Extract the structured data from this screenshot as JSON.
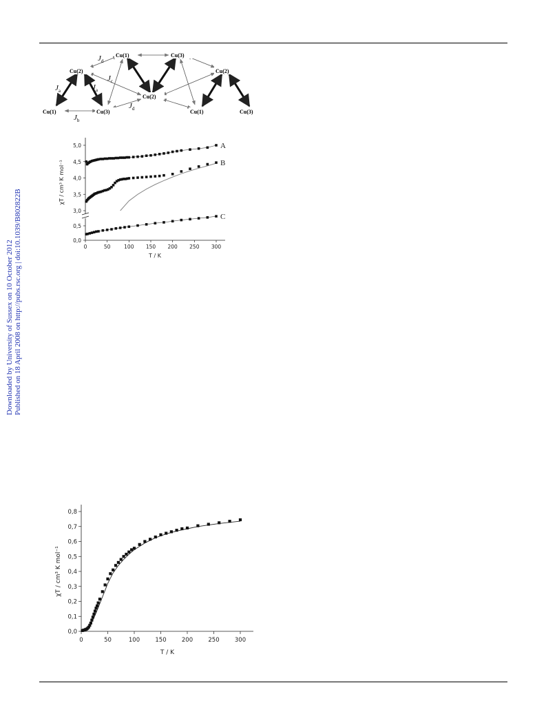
{
  "sidebar": {
    "line1": "Downloaded by University of Sussex on 10 October 2012",
    "line2": "Published on 18 April 2008 on http://pubs.rsc.org | doi:10.1039/B802822B"
  },
  "scheme": {
    "nodes": [
      "Cu(1)",
      "Cu(2)",
      "Cu(3)",
      "Cu(1)",
      "Cu(3)",
      "Cu(2)",
      "Cu(2)",
      "Cu(1)",
      "Cu(3)"
    ],
    "couplings": [
      {
        "letter": "J",
        "sub": "a"
      },
      {
        "letter": "J",
        "sub": "a"
      },
      {
        "letter": "J",
        "sub": "b"
      },
      {
        "letter": "J",
        "sub": "d"
      },
      {
        "letter": "J",
        "sub": "c"
      },
      {
        "letter": "J",
        "sub": "d"
      }
    ]
  },
  "chart_data": [
    {
      "type": "scatter",
      "title": "",
      "xlabel": "T / K",
      "ylabel": "χT / cm³ K mol⁻¹",
      "xlim": [
        0,
        320
      ],
      "ylim": [
        0,
        5.2
      ],
      "axis_break": {
        "between": [
          0.8,
          3.0
        ]
      },
      "xticks": [
        "0",
        "50",
        "100",
        "150",
        "200",
        "250",
        "300"
      ],
      "yticks": [
        "0,0",
        "0,5",
        "3,0",
        "3,5",
        "4,0",
        "4,5",
        "5,0"
      ],
      "series": [
        {
          "name": "A",
          "x": [
            2,
            4,
            6,
            8,
            10,
            12,
            15,
            18,
            21,
            24,
            27,
            30,
            35,
            40,
            45,
            50,
            55,
            60,
            65,
            70,
            75,
            80,
            85,
            90,
            95,
            100,
            110,
            120,
            130,
            140,
            150,
            160,
            170,
            180,
            190,
            200,
            210,
            220,
            240,
            260,
            280,
            300
          ],
          "y": [
            4.5,
            4.42,
            4.45,
            4.47,
            4.49,
            4.5,
            4.52,
            4.53,
            4.54,
            4.55,
            4.56,
            4.57,
            4.58,
            4.58,
            4.59,
            4.59,
            4.6,
            4.6,
            4.6,
            4.61,
            4.61,
            4.62,
            4.62,
            4.62,
            4.63,
            4.63,
            4.64,
            4.65,
            4.66,
            4.68,
            4.69,
            4.71,
            4.73,
            4.75,
            4.77,
            4.8,
            4.82,
            4.84,
            4.87,
            4.9,
            4.93,
            5.0
          ]
        },
        {
          "name": "B",
          "x": [
            2,
            4,
            6,
            8,
            10,
            12,
            14,
            16,
            18,
            20,
            22,
            25,
            28,
            30,
            33,
            36,
            40,
            44,
            48,
            52,
            56,
            60,
            64,
            68,
            72,
            76,
            80,
            84,
            88,
            92,
            96,
            100,
            110,
            120,
            130,
            140,
            150,
            160,
            170,
            180,
            200,
            220,
            240,
            260,
            280,
            300
          ],
          "y": [
            3.28,
            3.32,
            3.35,
            3.38,
            3.4,
            3.42,
            3.44,
            3.46,
            3.48,
            3.5,
            3.52,
            3.53,
            3.55,
            3.56,
            3.57,
            3.58,
            3.6,
            3.62,
            3.63,
            3.65,
            3.68,
            3.72,
            3.78,
            3.85,
            3.9,
            3.93,
            3.95,
            3.96,
            3.97,
            3.97,
            3.98,
            3.99,
            4.0,
            4.01,
            4.02,
            4.03,
            4.04,
            4.05,
            4.06,
            4.08,
            4.12,
            4.2,
            4.28,
            4.35,
            4.42,
            4.47
          ]
        },
        {
          "name": "C",
          "x": [
            2,
            5,
            10,
            15,
            20,
            25,
            30,
            40,
            50,
            60,
            70,
            80,
            90,
            100,
            120,
            140,
            160,
            180,
            200,
            220,
            240,
            260,
            280,
            300
          ],
          "y": [
            0.21,
            0.22,
            0.24,
            0.26,
            0.28,
            0.3,
            0.31,
            0.34,
            0.36,
            0.38,
            0.41,
            0.43,
            0.45,
            0.47,
            0.51,
            0.55,
            0.59,
            0.62,
            0.66,
            0.7,
            0.73,
            0.76,
            0.79,
            0.83
          ]
        }
      ],
      "fit_curve": {
        "x": [
          80,
          100,
          120,
          140,
          160,
          180,
          200,
          220,
          240,
          260,
          280,
          300
        ],
        "y": [
          3.0,
          3.3,
          3.5,
          3.66,
          3.8,
          3.92,
          4.03,
          4.13,
          4.22,
          4.3,
          4.37,
          4.45
        ]
      }
    },
    {
      "type": "scatter",
      "title": "",
      "xlabel": "T / K",
      "ylabel": "χT / cm³ K mol⁻¹",
      "xlim": [
        0,
        320
      ],
      "ylim": [
        0,
        0.85
      ],
      "xticks": [
        "0",
        "50",
        "100",
        "150",
        "200",
        "250",
        "300"
      ],
      "yticks": [
        "0,0",
        "0,1",
        "0,2",
        "0,3",
        "0,4",
        "0,5",
        "0,6",
        "0,7",
        "0,8"
      ],
      "series": [
        {
          "name": "",
          "x": [
            2,
            4,
            6,
            8,
            10,
            12,
            14,
            16,
            18,
            20,
            22,
            24,
            26,
            28,
            30,
            32,
            35,
            40,
            45,
            50,
            55,
            60,
            65,
            70,
            75,
            80,
            85,
            90,
            95,
            100,
            110,
            120,
            130,
            140,
            150,
            160,
            170,
            180,
            190,
            200,
            220,
            240,
            260,
            280,
            300
          ],
          "y": [
            0.005,
            0.007,
            0.009,
            0.012,
            0.015,
            0.02,
            0.028,
            0.04,
            0.055,
            0.075,
            0.095,
            0.115,
            0.135,
            0.155,
            0.17,
            0.19,
            0.215,
            0.265,
            0.31,
            0.35,
            0.385,
            0.41,
            0.44,
            0.46,
            0.48,
            0.5,
            0.515,
            0.53,
            0.545,
            0.555,
            0.58,
            0.6,
            0.615,
            0.63,
            0.645,
            0.655,
            0.665,
            0.675,
            0.685,
            0.69,
            0.705,
            0.715,
            0.725,
            0.735,
            0.745
          ]
        }
      ],
      "fit_curve": {
        "x": [
          0,
          5,
          10,
          15,
          20,
          25,
          30,
          35,
          40,
          45,
          50,
          60,
          70,
          80,
          90,
          100,
          120,
          140,
          160,
          180,
          200,
          220,
          240,
          260,
          280,
          300
        ],
        "y": [
          0.0,
          0.003,
          0.012,
          0.03,
          0.06,
          0.1,
          0.14,
          0.185,
          0.23,
          0.275,
          0.32,
          0.39,
          0.44,
          0.48,
          0.515,
          0.545,
          0.59,
          0.625,
          0.65,
          0.67,
          0.685,
          0.7,
          0.71,
          0.72,
          0.728,
          0.735
        ]
      }
    }
  ]
}
